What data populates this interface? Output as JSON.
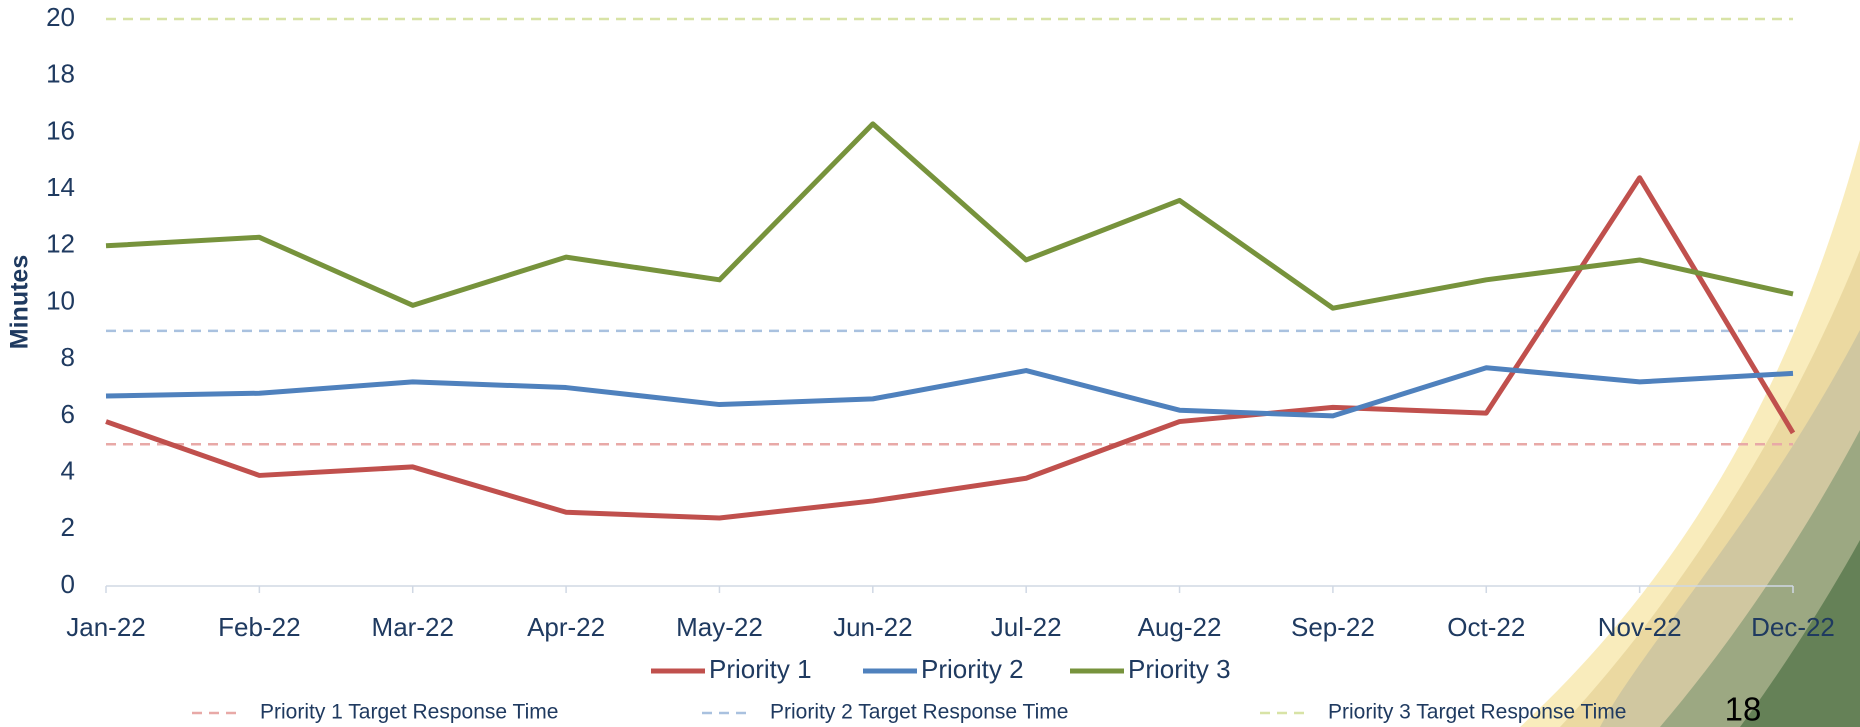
{
  "chart_data": {
    "type": "line",
    "y_label": "Minutes",
    "categories": [
      "Jan-22",
      "Feb-22",
      "Mar-22",
      "Apr-22",
      "May-22",
      "Jun-22",
      "Jul-22",
      "Aug-22",
      "Sep-22",
      "Oct-22",
      "Nov-22",
      "Dec-22"
    ],
    "series": [
      {
        "name": "Priority 1",
        "color": "#c0504d",
        "values": [
          5.8,
          3.9,
          4.2,
          2.6,
          2.4,
          3.0,
          3.8,
          5.8,
          6.3,
          6.1,
          14.4,
          5.4
        ]
      },
      {
        "name": "Priority 2",
        "color": "#4f81bd",
        "values": [
          6.7,
          6.8,
          7.2,
          7.0,
          6.4,
          6.6,
          7.6,
          6.2,
          6.0,
          7.7,
          7.2,
          7.5
        ]
      },
      {
        "name": "Priority 3",
        "color": "#77933c",
        "values": [
          12.0,
          12.3,
          9.9,
          11.6,
          10.8,
          16.3,
          11.5,
          13.6,
          9.8,
          10.8,
          11.5,
          10.3
        ]
      }
    ],
    "targets": [
      {
        "name": "Priority 1 Target Response Time",
        "color": "#e8a9a7",
        "value": 5
      },
      {
        "name": "Priority 2 Target Response Time",
        "color": "#a9c1df",
        "value": 9
      },
      {
        "name": "Priority 3 Target Response Time",
        "color": "#d8e3a6",
        "value": 20
      }
    ],
    "ylim": [
      0,
      20
    ],
    "yticks": [
      0,
      2,
      4,
      6,
      8,
      10,
      12,
      14,
      16,
      18,
      20
    ],
    "page_number": "18"
  }
}
